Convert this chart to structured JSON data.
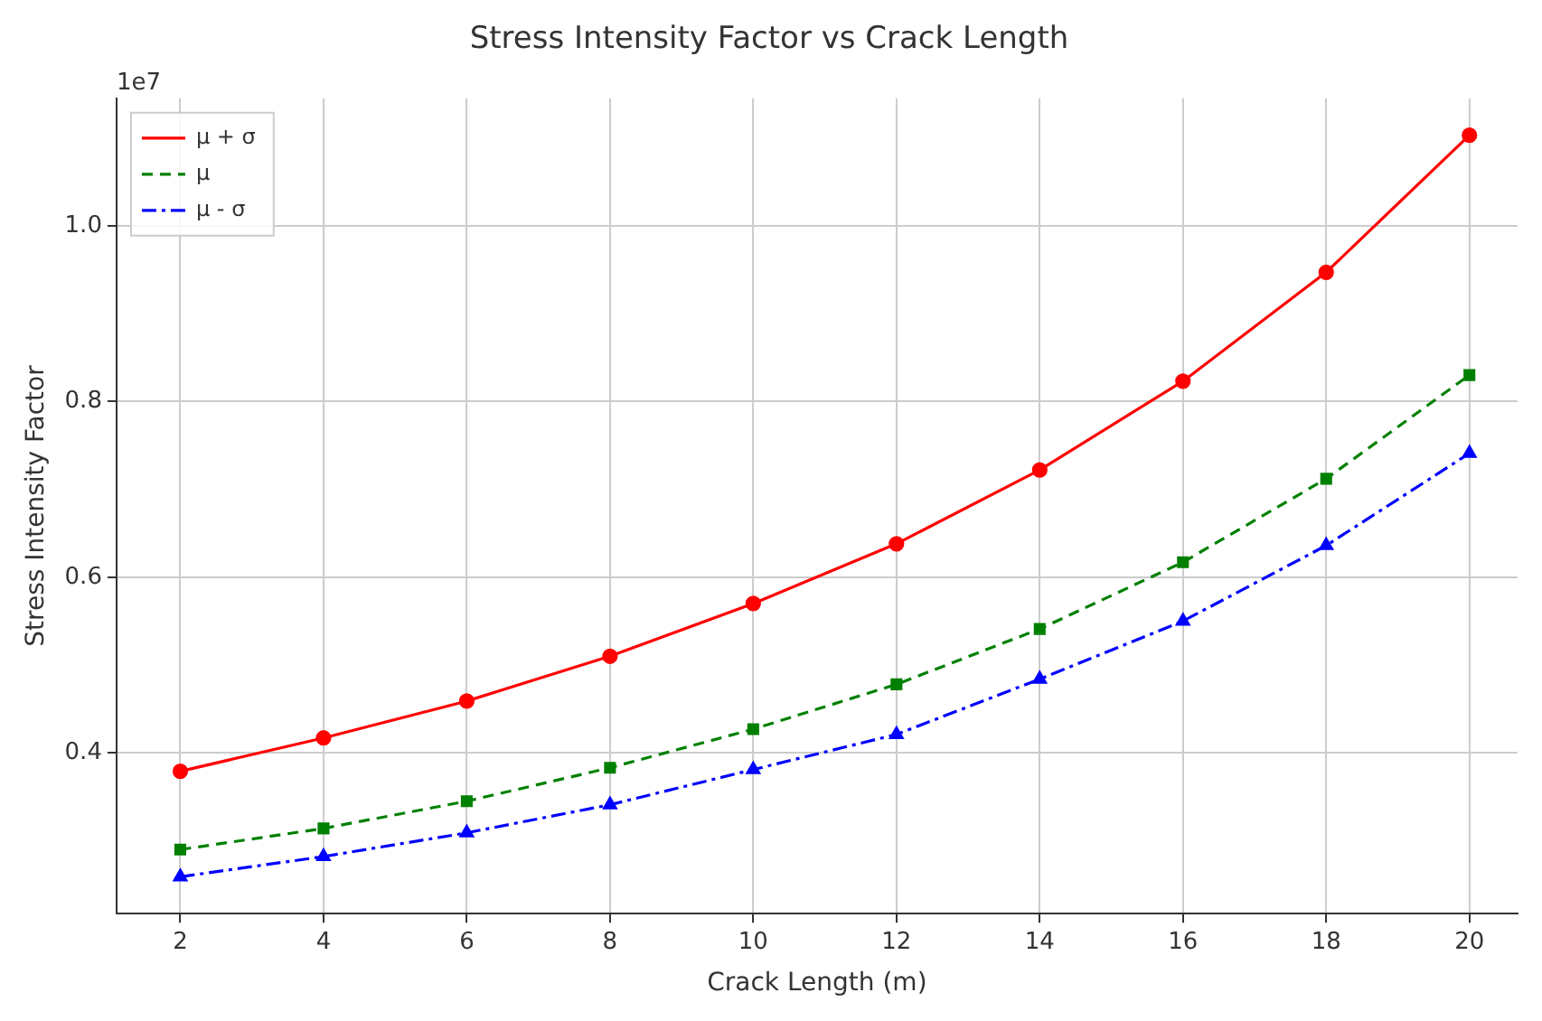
{
  "chart_data": {
    "type": "line",
    "title": "Stress Intensity Factor vs Crack Length",
    "xlabel": "Crack Length (m)",
    "ylabel": "Stress Intensity Factor",
    "annotations": [
      "1e7"
    ],
    "x": [
      2,
      4,
      6,
      8,
      10,
      12,
      14,
      16,
      18,
      20
    ],
    "series": [
      {
        "name": "μ + σ",
        "color": "#ff0000",
        "marker": "circle",
        "line_style": "solid",
        "values": [
          0.379,
          0.417,
          0.459,
          0.51,
          0.57,
          0.638,
          0.722,
          0.823,
          0.947,
          1.103
        ]
      },
      {
        "name": "μ",
        "color": "#008000",
        "marker": "square",
        "line_style": "dashed",
        "values": [
          0.29,
          0.314,
          0.345,
          0.383,
          0.427,
          0.478,
          0.541,
          0.617,
          0.712,
          0.83
        ]
      },
      {
        "name": "μ - σ",
        "color": "#0000ff",
        "marker": "triangle",
        "line_style": "dashdot",
        "values": [
          0.259,
          0.282,
          0.309,
          0.341,
          0.381,
          0.421,
          0.484,
          0.55,
          0.636,
          0.741
        ]
      }
    ],
    "xlim": [
      1.11,
      20.67
    ],
    "ylim": [
      0.217,
      1.145
    ],
    "xticks": [
      2,
      4,
      6,
      8,
      10,
      12,
      14,
      16,
      18,
      20
    ],
    "yticks": [
      0.4,
      0.6,
      0.8,
      {
        "value": 1,
        "label": "1.0"
      }
    ],
    "grid": true,
    "legend": "top left"
  }
}
